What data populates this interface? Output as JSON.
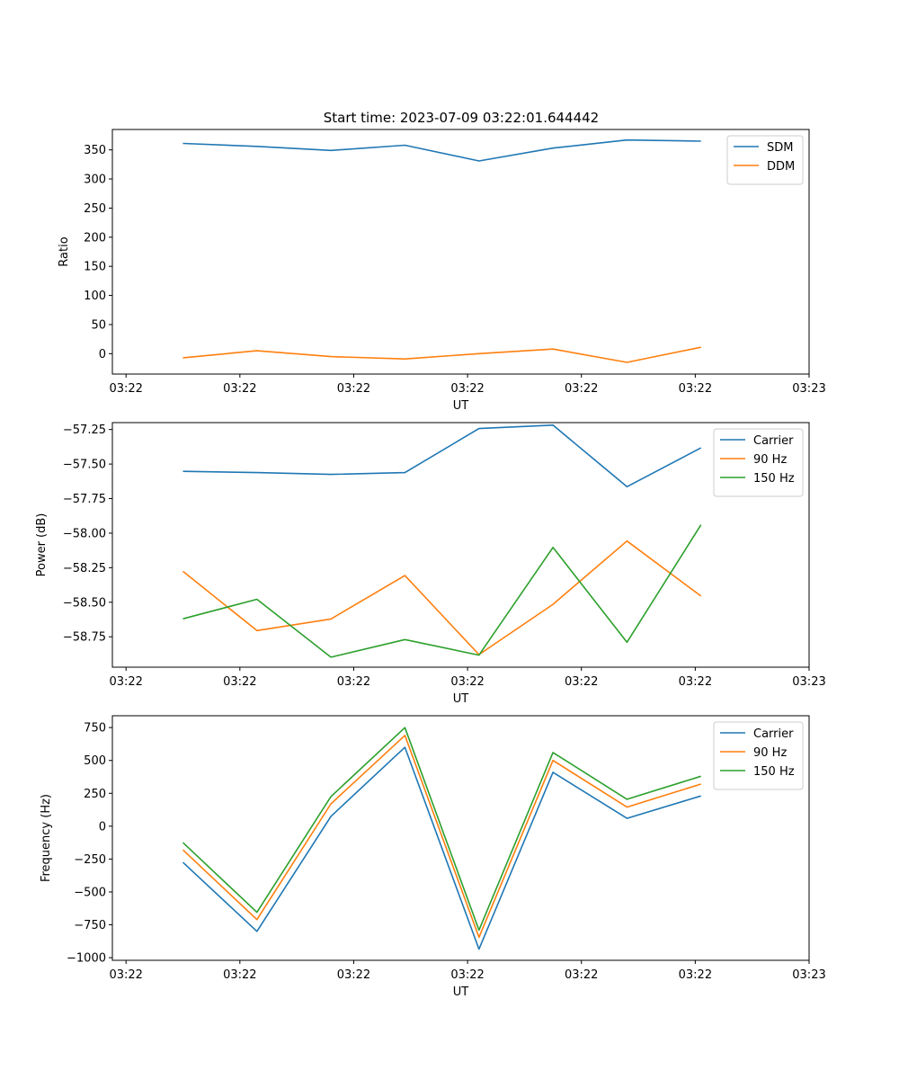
{
  "figure_title": "Start time: 2023-07-09 03:22:01.644442",
  "colors": {
    "blue": "#1f77b4",
    "orange": "#ff7f0e",
    "green": "#2ca02c"
  },
  "chart_data": [
    {
      "type": "line",
      "title": "Start time: 2023-07-09 03:22:01.644442",
      "xlabel": "UT",
      "ylabel": "Ratio",
      "x": [
        0.5,
        1.15,
        1.8,
        2.45,
        3.1,
        3.75,
        4.4,
        5.05
      ],
      "xlim": [
        -0.12,
        6.0
      ],
      "xticks": [
        0,
        1,
        2,
        3,
        4,
        5,
        6
      ],
      "xtick_labels": [
        "03:22",
        "03:22",
        "03:22",
        "03:22",
        "03:22",
        "03:22",
        "03:23"
      ],
      "ylim": [
        -35,
        385
      ],
      "yticks": [
        0,
        50,
        100,
        150,
        200,
        250,
        300,
        350
      ],
      "ytick_labels": [
        "0",
        "50",
        "100",
        "150",
        "200",
        "250",
        "300",
        "350"
      ],
      "legend_position": "upper-right",
      "series": [
        {
          "name": "SDM",
          "color": "#1f77b4",
          "values": [
            361,
            356,
            349,
            358,
            331,
            353,
            367,
            365
          ]
        },
        {
          "name": "DDM",
          "color": "#ff7f0e",
          "values": [
            -7,
            5,
            -5,
            -9,
            0,
            8,
            -15,
            11
          ]
        }
      ]
    },
    {
      "type": "line",
      "title": "",
      "xlabel": "UT",
      "ylabel": "Power (dB)",
      "x": [
        0.5,
        1.15,
        1.8,
        2.45,
        3.1,
        3.75,
        4.4,
        5.05
      ],
      "xlim": [
        -0.12,
        6.0
      ],
      "xticks": [
        0,
        1,
        2,
        3,
        4,
        5,
        6
      ],
      "xtick_labels": [
        "03:22",
        "03:22",
        "03:22",
        "03:22",
        "03:22",
        "03:22",
        "03:23"
      ],
      "ylim": [
        -58.97,
        -57.2
      ],
      "yticks": [
        -58.75,
        -58.5,
        -58.25,
        -58.0,
        -57.75,
        -57.5,
        -57.25
      ],
      "ytick_labels": [
        "−58.75",
        "−58.50",
        "−58.25",
        "−58.00",
        "−57.75",
        "−57.50",
        "−57.25"
      ],
      "legend_position": "upper-right",
      "series": [
        {
          "name": "Carrier",
          "color": "#1f77b4",
          "values": [
            -57.553,
            -57.562,
            -57.575,
            -57.562,
            -57.243,
            -57.218,
            -57.664,
            -57.383
          ]
        },
        {
          "name": "90 Hz",
          "color": "#ff7f0e",
          "values": [
            -58.276,
            -58.705,
            -58.621,
            -58.307,
            -58.879,
            -58.515,
            -58.057,
            -58.455
          ]
        },
        {
          "name": "150 Hz",
          "color": "#2ca02c",
          "values": [
            -58.62,
            -58.479,
            -58.898,
            -58.77,
            -58.883,
            -58.103,
            -58.79,
            -57.94
          ]
        }
      ]
    },
    {
      "type": "line",
      "title": "",
      "xlabel": "UT",
      "ylabel": "Frequency (Hz)",
      "x": [
        0.5,
        1.15,
        1.8,
        2.45,
        3.1,
        3.75,
        4.4,
        5.05
      ],
      "xlim": [
        -0.12,
        6.0
      ],
      "xticks": [
        0,
        1,
        2,
        3,
        4,
        5,
        6
      ],
      "xtick_labels": [
        "03:22",
        "03:22",
        "03:22",
        "03:22",
        "03:22",
        "03:22",
        "03:23"
      ],
      "ylim": [
        -1020,
        840
      ],
      "yticks": [
        -1000,
        -750,
        -500,
        -250,
        0,
        250,
        500,
        750
      ],
      "ytick_labels": [
        "−1000",
        "−750",
        "−500",
        "−250",
        "0",
        "250",
        "500",
        "750"
      ],
      "legend_position": "upper-right",
      "series": [
        {
          "name": "Carrier",
          "color": "#1f77b4",
          "values": [
            -275,
            -800,
            75,
            600,
            -935,
            410,
            60,
            230
          ]
        },
        {
          "name": "90 Hz",
          "color": "#ff7f0e",
          "values": [
            -180,
            -710,
            170,
            690,
            -845,
            500,
            145,
            320
          ]
        },
        {
          "name": "150 Hz",
          "color": "#2ca02c",
          "values": [
            -125,
            -655,
            225,
            750,
            -790,
            560,
            205,
            380
          ]
        }
      ]
    }
  ]
}
